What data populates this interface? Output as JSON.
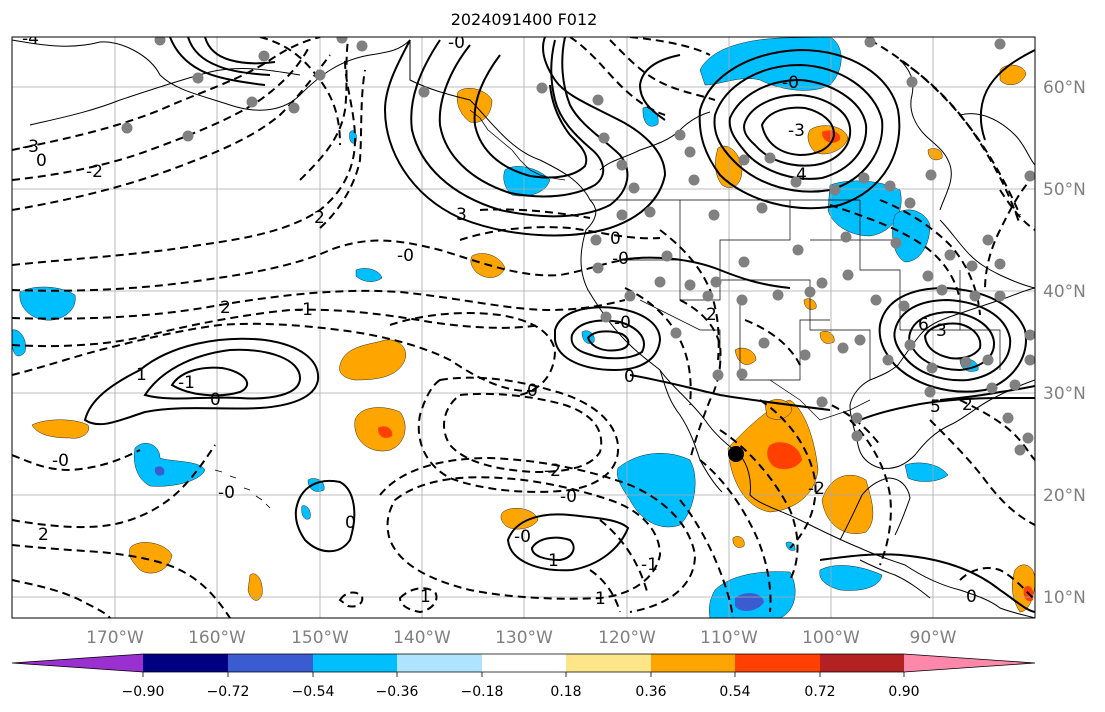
{
  "title": "2024091400 F012",
  "lon_labels": [
    "170°W",
    "160°W",
    "150°W",
    "140°W",
    "130°W",
    "120°W",
    "110°W",
    "100°W",
    "90°W"
  ],
  "lat_labels": [
    "60°N",
    "50°N",
    "40°N",
    "30°N",
    "20°N",
    "10°N"
  ],
  "colorbar": {
    "ticks": [
      "−0.90",
      "−0.72",
      "−0.54",
      "−0.36",
      "−0.18",
      "0.18",
      "0.36",
      "0.54",
      "0.72",
      "0.90"
    ],
    "colors": [
      "#9b30d0",
      "#000080",
      "#3b5bd0",
      "#00bfff",
      "#aee4ff",
      "#ffffff",
      "#fde68a",
      "#ffa500",
      "#ff4000",
      "#b22222",
      "#ff88aa"
    ]
  },
  "contour_labels": [
    "-4",
    "-3",
    "0",
    "-2",
    "2",
    "-1",
    "-0",
    "1",
    "-1",
    "0",
    "2",
    "-0",
    "0",
    "1",
    "-0",
    "-1",
    "-2",
    "-0",
    "0",
    "1",
    "-0",
    "0",
    "-0",
    "-0",
    "0",
    "3",
    "-0",
    "2",
    "2",
    "-0",
    "-3",
    "4",
    "6",
    "3",
    "2",
    "5",
    "0",
    "-2",
    "1"
  ],
  "colors": {
    "land": "#000000",
    "station_dot": "#808080",
    "grid": "#aaaaaa",
    "tick_label": "#808080"
  }
}
